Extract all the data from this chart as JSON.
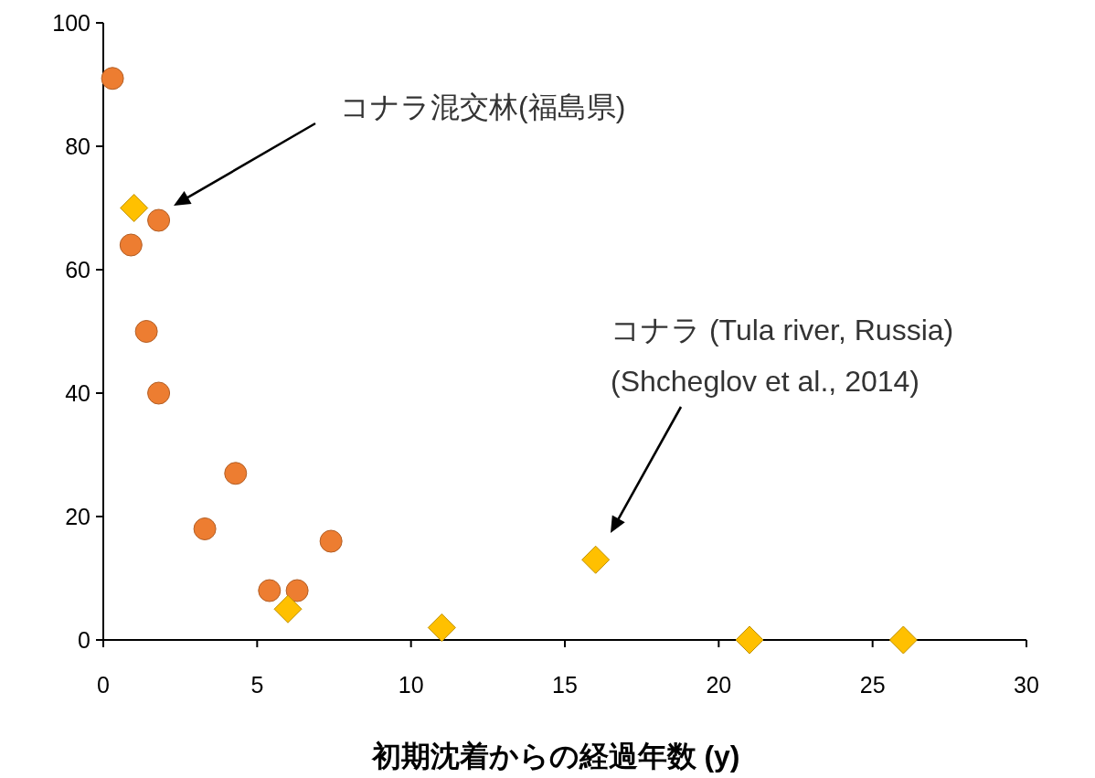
{
  "chart_data": {
    "type": "scatter",
    "xlabel": "初期沈着からの経過年数 (y)",
    "xlim": [
      0,
      30
    ],
    "xticks": [
      0,
      5,
      10,
      15,
      20,
      25,
      30
    ],
    "ylim": [
      0,
      100
    ],
    "yticks": [
      0,
      20,
      40,
      60,
      80,
      100
    ],
    "grid": false,
    "series": [
      {
        "color": "#ed7d31",
        "marker": "circle",
        "x": [
          0.3,
          0.9,
          1.8,
          1.4,
          1.8,
          4.3,
          3.3,
          5.4,
          6.3,
          7.4
        ],
        "values": [
          91,
          64,
          68,
          50,
          40,
          27,
          18,
          8,
          8,
          16
        ]
      },
      {
        "color": "#ffc000",
        "marker": "diamond",
        "x": [
          1,
          6,
          11,
          16,
          21,
          26
        ],
        "values": [
          70,
          5,
          2,
          13,
          0,
          0
        ]
      }
    ],
    "annotations": [
      "コナラ混交林(福島県)",
      "コナラ (Tula river, Russia)\n(Shcheglov et al., 2014)"
    ]
  }
}
